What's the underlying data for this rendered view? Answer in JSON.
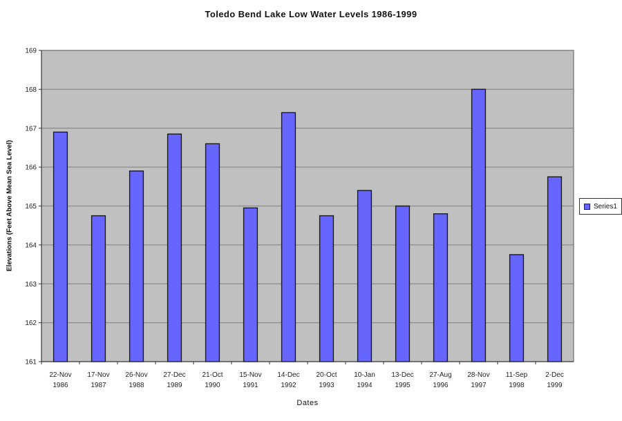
{
  "chart_data": {
    "type": "bar",
    "title": "Toledo Bend Lake Low Water Levels 1986-1999",
    "xlabel": "Dates",
    "ylabel": "Elevations (Feet Above Mean Sea Level)",
    "categories": [
      [
        "22-Nov",
        "1986"
      ],
      [
        "17-Nov",
        "1987"
      ],
      [
        "26-Nov",
        "1988"
      ],
      [
        "27-Dec",
        "1989"
      ],
      [
        "21-Oct",
        "1990"
      ],
      [
        "15-Nov",
        "1991"
      ],
      [
        "14-Dec",
        "1992"
      ],
      [
        "20-Oct",
        "1993"
      ],
      [
        "10-Jan",
        "1994"
      ],
      [
        "13-Dec",
        "1995"
      ],
      [
        "27-Aug",
        "1996"
      ],
      [
        "28-Nov",
        "1997"
      ],
      [
        "11-Sep",
        "1998"
      ],
      [
        "2-Dec",
        "1999"
      ]
    ],
    "series": [
      {
        "name": "Series1",
        "values": [
          166.9,
          164.75,
          165.9,
          166.85,
          166.6,
          164.95,
          167.4,
          164.75,
          165.4,
          165.0,
          164.8,
          168.0,
          163.75,
          165.75
        ]
      }
    ],
    "ylim": [
      161,
      169
    ],
    "yticks": [
      161,
      162,
      163,
      164,
      165,
      166,
      167,
      168,
      169
    ],
    "grid": true,
    "legend_position": "right",
    "colors": {
      "bar": "#6666ff",
      "plot_background": "#c0c0c0",
      "gridline": "#8a8a8a"
    }
  }
}
